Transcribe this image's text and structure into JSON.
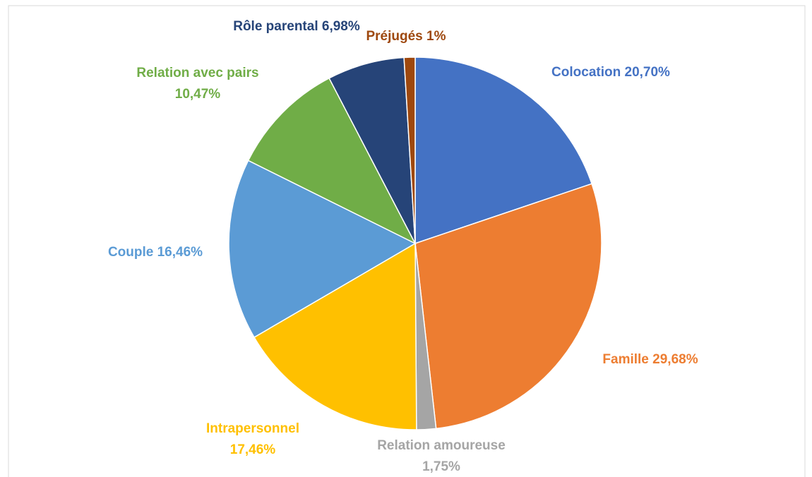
{
  "chart_data": {
    "type": "pie",
    "categories": [
      "Colocation",
      "Famille",
      "Relation amoureuse",
      "Intrapersonnel",
      "Couple",
      "Relation avec pairs",
      "Rôle parental",
      "Préjugés"
    ],
    "values": [
      20.7,
      29.68,
      1.75,
      17.46,
      16.46,
      10.47,
      6.98,
      1
    ],
    "value_labels": [
      "20,70%",
      "29,68%",
      "1,75%",
      "17,46%",
      "16,46%",
      "10,47%",
      "6,98%",
      "1%"
    ],
    "colors": [
      "#4472c4",
      "#ed7d31",
      "#a5a5a5",
      "#ffc000",
      "#5b9bd5",
      "#70ad47",
      "#264478",
      "#9e480e"
    ]
  }
}
